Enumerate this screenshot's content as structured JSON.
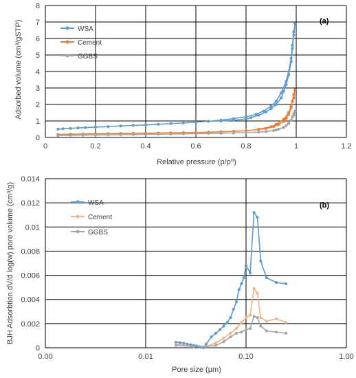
{
  "chart_data": [
    {
      "type": "line",
      "panel_label": "(a)",
      "xlabel": "Relative pressure (p/p⁰)",
      "ylabel": "Adsorbed volume (cm³/gSTP)",
      "xlim": [
        0,
        1.2
      ],
      "ylim": [
        0,
        8
      ],
      "x_ticks": [
        "0",
        "0.2",
        "0.4",
        "0.6",
        "0.8",
        "1",
        "1.2"
      ],
      "y_ticks": [
        "0",
        "1",
        "2",
        "3",
        "4",
        "5",
        "6",
        "7",
        "8"
      ],
      "x_tick_values": [
        0,
        0.2,
        0.4,
        0.6,
        0.8,
        1.0,
        1.2
      ],
      "y_tick_values": [
        0,
        1,
        2,
        3,
        4,
        5,
        6,
        7,
        8
      ],
      "grid": true,
      "legend_position": "top-left",
      "series": [
        {
          "name": "WSA",
          "color": "#5b9bd5",
          "x": [
            0.05,
            0.07,
            0.1,
            0.13,
            0.16,
            0.2,
            0.25,
            0.3,
            0.35,
            0.4,
            0.45,
            0.5,
            0.55,
            0.6,
            0.65,
            0.7,
            0.75,
            0.8,
            0.84,
            0.87,
            0.9,
            0.92,
            0.94,
            0.96,
            0.97,
            0.98,
            0.985,
            0.99,
            0.995,
            0.99,
            0.985,
            0.98,
            0.97,
            0.96,
            0.95,
            0.94,
            0.92,
            0.9,
            0.88,
            0.85,
            0.82,
            0.8,
            0.75,
            0.7,
            0.65
          ],
          "y": [
            0.5,
            0.53,
            0.55,
            0.58,
            0.6,
            0.63,
            0.66,
            0.7,
            0.73,
            0.76,
            0.8,
            0.84,
            0.88,
            0.93,
            0.98,
            1.05,
            1.14,
            1.25,
            1.4,
            1.6,
            1.9,
            2.2,
            2.7,
            3.4,
            4.0,
            4.8,
            5.6,
            6.4,
            6.9,
            6.2,
            5.4,
            4.6,
            3.8,
            3.2,
            2.8,
            2.4,
            2.0,
            1.75,
            1.55,
            1.35,
            1.2,
            1.12,
            1.04,
            1.0,
            0.98
          ]
        },
        {
          "name": "Cement",
          "color": "#ed7d31",
          "x": [
            0.05,
            0.1,
            0.15,
            0.2,
            0.25,
            0.3,
            0.35,
            0.4,
            0.45,
            0.5,
            0.55,
            0.6,
            0.65,
            0.7,
            0.75,
            0.8,
            0.85,
            0.88,
            0.91,
            0.93,
            0.95,
            0.96,
            0.97,
            0.98,
            0.985,
            0.99,
            0.995,
            0.99,
            0.98,
            0.97,
            0.95,
            0.92,
            0.9,
            0.85
          ],
          "y": [
            0.18,
            0.2,
            0.21,
            0.22,
            0.23,
            0.24,
            0.25,
            0.26,
            0.27,
            0.28,
            0.29,
            0.3,
            0.32,
            0.34,
            0.37,
            0.41,
            0.48,
            0.55,
            0.66,
            0.78,
            0.98,
            1.15,
            1.4,
            1.8,
            2.2,
            2.6,
            2.9,
            2.4,
            1.9,
            1.5,
            1.1,
            0.8,
            0.65,
            0.5
          ]
        },
        {
          "name": "GGBS",
          "color": "#a5a5a5",
          "x": [
            0.05,
            0.1,
            0.15,
            0.2,
            0.25,
            0.3,
            0.35,
            0.4,
            0.45,
            0.5,
            0.55,
            0.6,
            0.65,
            0.7,
            0.75,
            0.8,
            0.85,
            0.88,
            0.91,
            0.93,
            0.95,
            0.96,
            0.97,
            0.98,
            0.985,
            0.99,
            0.995,
            0.99,
            0.98,
            0.97,
            0.95,
            0.92
          ],
          "y": [
            0.12,
            0.13,
            0.14,
            0.15,
            0.16,
            0.17,
            0.18,
            0.19,
            0.2,
            0.21,
            0.22,
            0.23,
            0.24,
            0.25,
            0.27,
            0.29,
            0.32,
            0.36,
            0.42,
            0.5,
            0.62,
            0.72,
            0.85,
            1.05,
            1.25,
            1.45,
            1.6,
            1.35,
            1.05,
            0.85,
            0.6,
            0.45
          ]
        }
      ]
    },
    {
      "type": "line",
      "panel_label": "(b)",
      "xlabel": "Pore size (µm)",
      "ylabel": "BJH Adsorbtion dV/d log(w) pore volume (cm³/g)",
      "xscale": "log",
      "xlim": [
        0.001,
        1.0
      ],
      "ylim": [
        0,
        0.014
      ],
      "x_ticks": [
        "0.00",
        "0.01",
        "0.10",
        "1.00"
      ],
      "y_ticks": [
        "0",
        "0.002",
        "0.004",
        "0.006",
        "0.008",
        "0.01",
        "0.012",
        "0.014"
      ],
      "x_tick_values": [
        0.001,
        0.01,
        0.1,
        1.0
      ],
      "y_tick_values": [
        0,
        0.002,
        0.004,
        0.006,
        0.008,
        0.01,
        0.012,
        0.014
      ],
      "grid": true,
      "legend_position": "top-left",
      "series": [
        {
          "name": "WSA",
          "color": "#5b9bd5",
          "x": [
            0.02,
            0.022,
            0.024,
            0.026,
            0.028,
            0.03,
            0.032,
            0.034,
            0.036,
            0.038,
            0.04,
            0.045,
            0.05,
            0.055,
            0.06,
            0.065,
            0.07,
            0.075,
            0.08,
            0.085,
            0.09,
            0.095,
            0.1,
            0.11,
            0.12,
            0.13,
            0.14,
            0.16,
            0.2,
            0.25
          ],
          "y": [
            0.00046,
            0.00042,
            0.00037,
            0.0003,
            0.00025,
            0.0002,
            0.00015,
            0.0001,
            5e-05,
            0.0,
            0.0003,
            0.0009,
            0.0012,
            0.0015,
            0.0018,
            0.0021,
            0.0025,
            0.0032,
            0.0038,
            0.0048,
            0.0053,
            0.0058,
            0.0068,
            0.0062,
            0.0112,
            0.0108,
            0.0072,
            0.0058,
            0.0054,
            0.0053
          ]
        },
        {
          "name": "Cement",
          "color": "#f4b183",
          "x": [
            0.02,
            0.03,
            0.04,
            0.05,
            0.06,
            0.07,
            0.08,
            0.09,
            0.1,
            0.11,
            0.12,
            0.13,
            0.14,
            0.16,
            0.2,
            0.25
          ],
          "y": [
            0.0003,
            0.0001,
            0.0001,
            0.0004,
            0.0008,
            0.0012,
            0.0016,
            0.0021,
            0.0025,
            0.0027,
            0.0049,
            0.0045,
            0.0025,
            0.0022,
            0.0024,
            0.0021
          ]
        },
        {
          "name": "GGBS",
          "color": "#a5a5a5",
          "x": [
            0.02,
            0.03,
            0.04,
            0.05,
            0.06,
            0.07,
            0.08,
            0.09,
            0.1,
            0.11,
            0.12,
            0.13,
            0.14,
            0.16,
            0.2,
            0.25
          ],
          "y": [
            0.0002,
            0.0001,
            0.0001,
            0.0002,
            0.0005,
            0.0009,
            0.0012,
            0.0013,
            0.0015,
            0.0016,
            0.0026,
            0.0025,
            0.0018,
            0.0014,
            0.0013,
            0.0012
          ]
        }
      ]
    }
  ]
}
